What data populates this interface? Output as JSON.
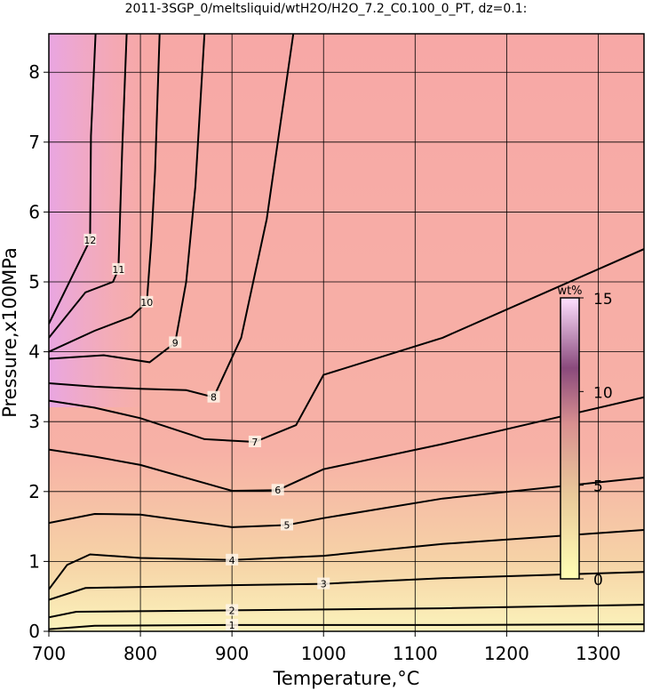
{
  "chart_data": {
    "type": "contour",
    "title": "2011-3SGP_0/meltsliquid/wtH2O/H2O_7.2_C0.100_0_PT, dz=0.1:",
    "xlabel": "Temperature,°C",
    "ylabel": "Pressure,x100MPa",
    "xlim": [
      700,
      1350
    ],
    "ylim": [
      0,
      8.55
    ],
    "xticks": [
      700,
      800,
      900,
      1000,
      1100,
      1200,
      1300
    ],
    "yticks": [
      0,
      1,
      2,
      3,
      4,
      5,
      6,
      7,
      8
    ],
    "grid": true,
    "line_color": "#000000",
    "contours": [
      {
        "level": 1,
        "x": [
          700,
          750,
          900,
          1130,
          1350
        ],
        "y": [
          0.03,
          0.08,
          0.09,
          0.09,
          0.1
        ]
      },
      {
        "level": 2,
        "x": [
          700,
          730,
          900,
          1130,
          1350
        ],
        "y": [
          0.2,
          0.28,
          0.3,
          0.33,
          0.38
        ]
      },
      {
        "level": 3,
        "x": [
          700,
          740,
          900,
          1000,
          1130,
          1350
        ],
        "y": [
          0.45,
          0.62,
          0.66,
          0.68,
          0.76,
          0.85
        ]
      },
      {
        "level": 4,
        "x": [
          700,
          720,
          745,
          800,
          900,
          1000,
          1130,
          1350
        ],
        "y": [
          0.6,
          0.95,
          1.1,
          1.05,
          1.02,
          1.08,
          1.25,
          1.45
        ]
      },
      {
        "level": 5,
        "x": [
          700,
          750,
          800,
          900,
          960,
          1000,
          1130,
          1350
        ],
        "y": [
          1.55,
          1.68,
          1.67,
          1.49,
          1.52,
          1.62,
          1.9,
          2.2
        ]
      },
      {
        "level": 6,
        "x": [
          700,
          750,
          800,
          900,
          950,
          1000,
          1130,
          1350
        ],
        "y": [
          2.6,
          2.5,
          2.38,
          2.01,
          2.02,
          2.32,
          2.68,
          3.35
        ]
      },
      {
        "level": 7,
        "x": [
          700,
          750,
          800,
          870,
          925,
          970,
          1000,
          1130,
          1350
        ],
        "y": [
          3.3,
          3.2,
          3.05,
          2.75,
          2.71,
          2.95,
          3.67,
          4.2,
          5.47
        ]
      },
      {
        "level": 8,
        "x": [
          700,
          750,
          800,
          850,
          880,
          910,
          938,
          967
        ],
        "y": [
          3.55,
          3.5,
          3.47,
          3.45,
          3.35,
          4.2,
          5.9,
          8.55
        ]
      },
      {
        "level": 9,
        "x": [
          700,
          760,
          810,
          838,
          850,
          860,
          870
        ],
        "y": [
          3.9,
          3.95,
          3.85,
          4.13,
          5.0,
          6.36,
          8.55
        ]
      },
      {
        "level": 10,
        "x": [
          700,
          750,
          790,
          807,
          812,
          816,
          821
        ],
        "y": [
          4.0,
          4.3,
          4.5,
          4.71,
          5.6,
          6.59,
          8.55
        ]
      },
      {
        "level": 11,
        "x": [
          700,
          740,
          770,
          776,
          780,
          785
        ],
        "y": [
          4.2,
          4.85,
          5.0,
          5.18,
          6.87,
          8.55
        ]
      },
      {
        "level": 12,
        "x": [
          700,
          730,
          745,
          746,
          751
        ],
        "y": [
          4.4,
          5.2,
          5.6,
          7.09,
          8.55
        ]
      }
    ],
    "colorbar": {
      "label": "wt%",
      "lim": [
        0,
        15
      ],
      "ticks": [
        0,
        5,
        10,
        15
      ]
    }
  }
}
